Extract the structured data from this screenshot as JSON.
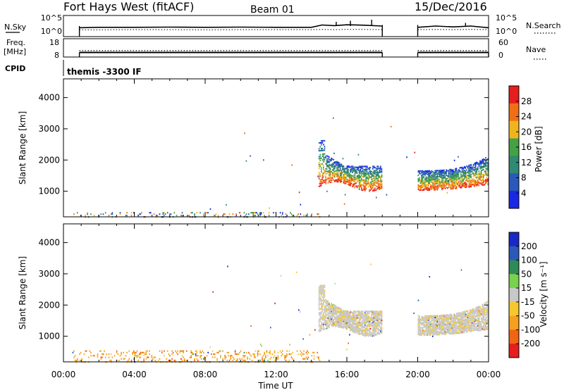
{
  "header": {
    "title": "Fort Hays West (fitACF)",
    "beam": "Beam 01",
    "date": "15/Dec/2016"
  },
  "chart_data": [
    {
      "type": "line",
      "panel": "noise",
      "left_label": "N.Sky",
      "right_label": "N.Search",
      "yticks_left": [
        "10^5",
        "10^0"
      ],
      "yticks_right": [
        "10^5",
        "10^0"
      ],
      "gap_utc": [
        18,
        20
      ],
      "x": [
        0.9,
        2,
        4,
        6,
        8,
        10,
        12,
        14,
        14.6,
        15.3,
        16,
        17,
        18,
        20,
        21,
        22,
        23,
        24
      ],
      "series": [
        {
          "name": "N.Sky",
          "values": [
            0.42,
            0.44,
            0.44,
            0.45,
            0.44,
            0.45,
            0.44,
            0.44,
            0.55,
            0.52,
            0.56,
            0.54,
            0.5,
            0.44,
            0.5,
            0.46,
            0.5,
            0.42
          ]
        },
        {
          "name": "N.Search",
          "values": [
            0.32,
            0.32,
            0.33,
            0.33,
            0.32,
            0.33,
            0.33,
            0.33,
            0.34,
            0.33,
            0.34,
            0.34,
            0.33,
            0.33,
            0.34,
            0.33,
            0.34,
            0.33
          ]
        }
      ]
    },
    {
      "type": "line",
      "panel": "frequency",
      "left_label": "Freq.",
      "left_unit": "[MHz]",
      "right_label": "Nave",
      "yticks_left": [
        "18",
        "8"
      ],
      "yticks_right": [
        "60",
        "0"
      ],
      "gap_utc": [
        18,
        20
      ],
      "x": [
        0.9,
        24
      ],
      "series": [
        {
          "name": "Freq.",
          "values": [
            10.5,
            10.5
          ]
        },
        {
          "name": "Nave",
          "values": [
            21,
            21
          ]
        }
      ]
    },
    {
      "type": "table",
      "panel": "cpid",
      "label": "CPID",
      "text": "themis -3300 IF"
    },
    {
      "type": "scatter",
      "panel": "power",
      "xlim": [
        0,
        24
      ],
      "ylim": [
        180,
        4600
      ],
      "ylabel": "Slant Range [km]",
      "yticks": [
        1000,
        2000,
        3000,
        4000
      ],
      "colorbar": {
        "label": "Power [dB]",
        "ticks": [
          "4",
          "8",
          "12",
          "16",
          "20",
          "24",
          "28"
        ],
        "colors": [
          "#1a28e6",
          "#2a5ab8",
          "#2f8a72",
          "#46a046",
          "#f0b41e",
          "#f06f14",
          "#e61e1e"
        ]
      },
      "regions": [
        {
          "t0": 0.5,
          "t1": 14.5,
          "r0": 200,
          "r1": 380,
          "density": 0.18,
          "level": [
            0.05,
            0.9
          ]
        },
        {
          "t0": 14.4,
          "t1": 18.0,
          "r0": 1180,
          "r1": 2350,
          "density": 0.55,
          "level": [
            0.2,
            0.85
          ]
        },
        {
          "t0": 20.0,
          "t1": 24.0,
          "r0": 1060,
          "r1": 2200,
          "density": 0.6,
          "level": [
            0.3,
            0.95
          ]
        }
      ]
    },
    {
      "type": "scatter",
      "panel": "velocity",
      "xlim": [
        0,
        24
      ],
      "ylim": [
        180,
        4600
      ],
      "ylabel": "Slant Range [km]",
      "xlabel": "Time UT",
      "xticks": [
        "00:00",
        "04:00",
        "08:00",
        "12:00",
        "16:00",
        "20:00",
        "00:00"
      ],
      "yticks": [
        1000,
        2000,
        3000,
        4000
      ],
      "colorbar": {
        "label": "Velocity [m s⁻¹]",
        "ticks": [
          "200",
          "100",
          "50",
          "15",
          "-15",
          "-50",
          "-100",
          "-200"
        ],
        "colors": [
          "#e61e1e",
          "#f06414",
          "#f5a01e",
          "#f5c82d",
          "#c8c8c8",
          "#7ad14e",
          "#2f8a5a",
          "#2a5ab8",
          "#1a28c8"
        ]
      },
      "regions": [
        {
          "t0": 0.5,
          "t1": 14.5,
          "r0": 200,
          "r1": 600,
          "density": 0.22,
          "level": [
            0.2,
            0.35
          ]
        },
        {
          "t0": 14.4,
          "t1": 18.0,
          "r0": 1200,
          "r1": 2600,
          "density": 0.7,
          "level": [
            0.42,
            0.55
          ]
        },
        {
          "t0": 20.0,
          "t1": 24.0,
          "r0": 1100,
          "r1": 2300,
          "density": 0.75,
          "level": [
            0.42,
            0.55
          ]
        }
      ]
    }
  ]
}
